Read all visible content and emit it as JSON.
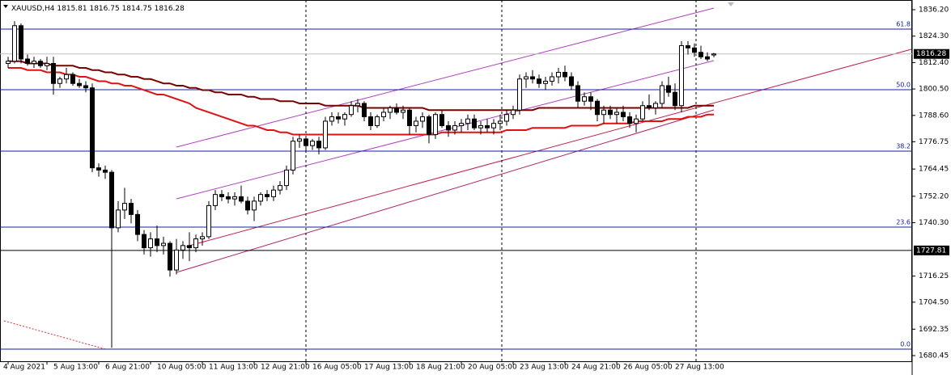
{
  "chart_data": {
    "type": "candlestick",
    "symbol": "XAUUSD,H4",
    "ylim": [
      1677.9,
      1840.57
    ],
    "yticks": [
      {
        "value": 1836.2,
        "label": "1836.20"
      },
      {
        "value": 1824.3,
        "label": "1824.30"
      },
      {
        "value": 1812.4,
        "label": "1812.40"
      },
      {
        "value": 1800.5,
        "label": "1800.50"
      },
      {
        "value": 1788.6,
        "label": "1788.60"
      },
      {
        "value": 1776.75,
        "label": "1776.75"
      },
      {
        "value": 1764.45,
        "label": "1764.45"
      },
      {
        "value": 1752.2,
        "label": "1752.20"
      },
      {
        "value": 1740.3,
        "label": "1740.30"
      },
      {
        "value": 1716.25,
        "label": "1716.25"
      },
      {
        "value": 1704.5,
        "label": "1704.50"
      },
      {
        "value": 1692.35,
        "label": "1692.35"
      },
      {
        "value": 1680.45,
        "label": "1680.45"
      }
    ],
    "categories": [
      "4 Aug 2021",
      null,
      null,
      null,
      null,
      null,
      "5 Aug 13:00",
      null,
      null,
      null,
      null,
      null,
      null,
      null,
      "6 Aug 21:00",
      null,
      null,
      null,
      null,
      null,
      null,
      null,
      "10 Aug 05:00",
      null,
      null,
      null,
      null,
      null,
      null,
      null,
      "11 Aug 13:00",
      null,
      null,
      null,
      null,
      null,
      null,
      null,
      "12 Aug 21:00",
      null,
      null,
      null,
      null,
      null,
      null,
      null,
      "16 Aug 05:00",
      null,
      null,
      null,
      null,
      null,
      null,
      null,
      "17 Aug 13:00",
      null,
      null,
      null,
      null,
      null,
      null,
      null,
      "18 Aug 21:00",
      null,
      null,
      null,
      null,
      null,
      null,
      null,
      "20 Aug 05:00",
      null,
      null,
      null,
      null,
      null,
      null,
      null,
      "23 Aug 13:00",
      null,
      null,
      null,
      null,
      null,
      null,
      null,
      "24 Aug 21:00",
      null,
      null,
      null,
      null,
      null,
      null,
      null,
      "26 Aug 05:00",
      null,
      null,
      null,
      null,
      null,
      null,
      null,
      "27 Aug 13:00",
      null,
      null,
      null,
      null,
      null,
      null,
      null
    ],
    "candles": [
      [
        1812,
        1815,
        1810,
        1813
      ],
      [
        1813,
        1831,
        1812,
        1829
      ],
      [
        1829,
        1830,
        1812,
        1814
      ],
      [
        1814,
        1816,
        1811,
        1812
      ],
      [
        1812,
        1815,
        1810,
        1813
      ],
      [
        1813,
        1814,
        1810,
        1811
      ],
      [
        1811,
        1815,
        1809,
        1812
      ],
      [
        1812,
        1815,
        1798,
        1803
      ],
      [
        1803,
        1806,
        1801,
        1805
      ],
      [
        1805,
        1810,
        1803,
        1807
      ],
      [
        1807,
        1808,
        1802,
        1803
      ],
      [
        1803,
        1805,
        1801,
        1802
      ],
      [
        1802,
        1804,
        1799,
        1801
      ],
      [
        1801,
        1803,
        1763,
        1765
      ],
      [
        1765,
        1767,
        1761,
        1764
      ],
      [
        1764,
        1766,
        1760,
        1763
      ],
      [
        1763,
        1764,
        1684,
        1738
      ],
      [
        1738,
        1750,
        1736,
        1746
      ],
      [
        1746,
        1756,
        1742,
        1749
      ],
      [
        1749,
        1751,
        1740,
        1744
      ],
      [
        1744,
        1746,
        1732,
        1735
      ],
      [
        1735,
        1737,
        1726,
        1729
      ],
      [
        1729,
        1736,
        1725,
        1733
      ],
      [
        1733,
        1739,
        1727,
        1730
      ],
      [
        1730,
        1734,
        1726,
        1731
      ],
      [
        1731,
        1732,
        1716,
        1719
      ],
      [
        1719,
        1733,
        1717,
        1728
      ],
      [
        1728,
        1732,
        1724,
        1730
      ],
      [
        1730,
        1736,
        1723,
        1729
      ],
      [
        1729,
        1735,
        1727,
        1733
      ],
      [
        1733,
        1736,
        1730,
        1734
      ],
      [
        1734,
        1750,
        1733,
        1748
      ],
      [
        1748,
        1755,
        1746,
        1753
      ],
      [
        1753,
        1755,
        1750,
        1752
      ],
      [
        1752,
        1754,
        1749,
        1751
      ],
      [
        1751,
        1754,
        1748,
        1752
      ],
      [
        1752,
        1757,
        1749,
        1750
      ],
      [
        1750,
        1752,
        1744,
        1746
      ],
      [
        1746,
        1752,
        1741,
        1750
      ],
      [
        1750,
        1754,
        1748,
        1753
      ],
      [
        1753,
        1755,
        1750,
        1752
      ],
      [
        1752,
        1757,
        1750,
        1755
      ],
      [
        1755,
        1759,
        1753,
        1757
      ],
      [
        1757,
        1766,
        1755,
        1764
      ],
      [
        1764,
        1779,
        1762,
        1777
      ],
      [
        1777,
        1780,
        1774,
        1778
      ],
      [
        1778,
        1779,
        1772,
        1775
      ],
      [
        1775,
        1778,
        1773,
        1777
      ],
      [
        1777,
        1779,
        1771,
        1774
      ],
      [
        1774,
        1788,
        1773,
        1786
      ],
      [
        1786,
        1790,
        1784,
        1788
      ],
      [
        1788,
        1790,
        1785,
        1787
      ],
      [
        1787,
        1790,
        1784,
        1789
      ],
      [
        1789,
        1795,
        1788,
        1793
      ],
      [
        1793,
        1796,
        1790,
        1794
      ],
      [
        1794,
        1795,
        1786,
        1788
      ],
      [
        1788,
        1790,
        1782,
        1784
      ],
      [
        1784,
        1789,
        1783,
        1788
      ],
      [
        1788,
        1792,
        1786,
        1790
      ],
      [
        1790,
        1793,
        1787,
        1792
      ],
      [
        1792,
        1794,
        1789,
        1790
      ],
      [
        1790,
        1793,
        1787,
        1791
      ],
      [
        1791,
        1792,
        1780,
        1784
      ],
      [
        1784,
        1788,
        1781,
        1786
      ],
      [
        1786,
        1790,
        1783,
        1788
      ],
      [
        1788,
        1789,
        1776,
        1780
      ],
      [
        1780,
        1790,
        1778,
        1789
      ],
      [
        1789,
        1791,
        1783,
        1784
      ],
      [
        1784,
        1786,
        1779,
        1782
      ],
      [
        1782,
        1786,
        1780,
        1784
      ],
      [
        1784,
        1787,
        1781,
        1785
      ],
      [
        1785,
        1789,
        1782,
        1787
      ],
      [
        1787,
        1789,
        1782,
        1783
      ],
      [
        1783,
        1786,
        1780,
        1784
      ],
      [
        1784,
        1787,
        1781,
        1783
      ],
      [
        1783,
        1787,
        1780,
        1785
      ],
      [
        1785,
        1789,
        1782,
        1786
      ],
      [
        1786,
        1791,
        1784,
        1789
      ],
      [
        1789,
        1793,
        1787,
        1791
      ],
      [
        1791,
        1807,
        1789,
        1805
      ],
      [
        1805,
        1808,
        1801,
        1806
      ],
      [
        1806,
        1809,
        1803,
        1805
      ],
      [
        1805,
        1807,
        1801,
        1803
      ],
      [
        1803,
        1806,
        1800,
        1804
      ],
      [
        1804,
        1808,
        1802,
        1806
      ],
      [
        1806,
        1810,
        1803,
        1808
      ],
      [
        1808,
        1811,
        1804,
        1806
      ],
      [
        1806,
        1808,
        1800,
        1802
      ],
      [
        1802,
        1804,
        1792,
        1795
      ],
      [
        1795,
        1799,
        1793,
        1797
      ],
      [
        1797,
        1799,
        1791,
        1795
      ],
      [
        1795,
        1796,
        1786,
        1789
      ],
      [
        1789,
        1793,
        1785,
        1791
      ],
      [
        1791,
        1793,
        1787,
        1789
      ],
      [
        1789,
        1792,
        1785,
        1790
      ],
      [
        1790,
        1793,
        1786,
        1788
      ],
      [
        1788,
        1790,
        1783,
        1785
      ],
      [
        1785,
        1789,
        1781,
        1787
      ],
      [
        1787,
        1795,
        1786,
        1793
      ],
      [
        1793,
        1798,
        1791,
        1792
      ],
      [
        1792,
        1795,
        1789,
        1794
      ],
      [
        1794,
        1804,
        1792,
        1802
      ],
      [
        1802,
        1806,
        1797,
        1799
      ],
      [
        1799,
        1803,
        1791,
        1793
      ],
      [
        1793,
        1822,
        1790,
        1820
      ],
      [
        1820,
        1822,
        1816,
        1819
      ],
      [
        1819,
        1821,
        1815,
        1817
      ],
      [
        1817,
        1820,
        1814,
        1815
      ],
      [
        1815,
        1817,
        1813,
        1814
      ],
      [
        1815.81,
        1816.75,
        1814.75,
        1816.28
      ]
    ],
    "series": [
      {
        "color": "#7a0000",
        "values": [
          1813,
          1813,
          1813,
          1812,
          1812,
          1812,
          1812,
          1811,
          1811,
          1811,
          1811,
          1810,
          1810,
          1809,
          1809,
          1808,
          1808,
          1807,
          1807,
          1806,
          1806,
          1805,
          1805,
          1804,
          1803,
          1803,
          1802,
          1802,
          1801,
          1801,
          1800,
          1800,
          1799,
          1799,
          1798,
          1798,
          1798,
          1797,
          1797,
          1796,
          1796,
          1796,
          1795,
          1795,
          1795,
          1794,
          1794,
          1794,
          1794,
          1793,
          1793,
          1793,
          1793,
          1793,
          1793,
          1792,
          1792,
          1792,
          1792,
          1792,
          1792,
          1792,
          1792,
          1792,
          1792,
          1791,
          1791,
          1791,
          1791,
          1791,
          1791,
          1791,
          1791,
          1791,
          1791,
          1791,
          1791,
          1791,
          1791,
          1791,
          1791,
          1791,
          1792,
          1792,
          1792,
          1792,
          1792,
          1792,
          1792,
          1792,
          1792,
          1792,
          1792,
          1792,
          1792,
          1792,
          1792,
          1792,
          1792,
          1792,
          1792,
          1792,
          1792,
          1792,
          1792,
          1792,
          1793,
          1793,
          1793,
          1793
        ]
      },
      {
        "color": "#e31010",
        "values": [
          1810,
          1810,
          1810,
          1809,
          1809,
          1809,
          1808,
          1808,
          1808,
          1807,
          1807,
          1806,
          1806,
          1805,
          1804,
          1804,
          1803,
          1803,
          1802,
          1802,
          1801,
          1800,
          1799,
          1798,
          1798,
          1797,
          1796,
          1795,
          1794,
          1792,
          1791,
          1790,
          1789,
          1788,
          1787,
          1786,
          1785,
          1784,
          1784,
          1783,
          1782,
          1782,
          1781,
          1781,
          1780,
          1780,
          1780,
          1780,
          1780,
          1780,
          1780,
          1780,
          1780,
          1780,
          1780,
          1780,
          1780,
          1780,
          1780,
          1780,
          1780,
          1780,
          1780,
          1780,
          1780,
          1780,
          1780,
          1781,
          1781,
          1781,
          1781,
          1781,
          1781,
          1781,
          1781,
          1781,
          1781,
          1782,
          1782,
          1782,
          1782,
          1783,
          1783,
          1783,
          1783,
          1783,
          1783,
          1784,
          1784,
          1784,
          1784,
          1784,
          1785,
          1785,
          1785,
          1785,
          1785,
          1786,
          1786,
          1786,
          1786,
          1786,
          1787,
          1787,
          1787,
          1788,
          1788,
          1788,
          1789,
          1789
        ]
      }
    ],
    "fib_levels": [
      {
        "label": "61.8",
        "price": 1827.47
      },
      {
        "label": "50.0",
        "price": 1800.17
      },
      {
        "label": "38.2",
        "price": 1772.52
      },
      {
        "label": "23.6",
        "price": 1738.3
      },
      {
        "label": "0.0",
        "price": 1683.36
      }
    ],
    "hline": 1727.81
  }
}
